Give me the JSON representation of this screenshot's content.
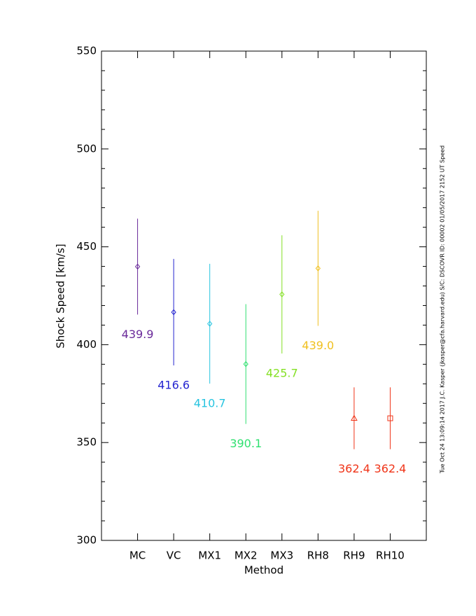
{
  "chart_data": {
    "type": "errorbar",
    "xlabel": "Method",
    "ylabel": "Shock Speed [km/s]",
    "annotation": "Tue Oct 24 13:09:14 2017   J.C. Kasper (jkasper@cfa.harvard.edu)   S/C: DSCOVR ID: 00002 01/05/2017  2152 UT Speed",
    "categories": [
      "MC",
      "VC",
      "MX1",
      "MX2",
      "MX3",
      "RH8",
      "RH9",
      "RH10"
    ],
    "values": [
      439.9,
      416.6,
      410.7,
      390.1,
      425.7,
      439.0,
      362.4,
      362.4
    ],
    "value_labels": [
      "439.9",
      "416.6",
      "410.7",
      "390.1",
      "425.7",
      "439.0",
      "362.4",
      "362.4"
    ],
    "errors": [
      24.5,
      27.2,
      30.6,
      30.6,
      30.2,
      29.4,
      15.8,
      15.8
    ],
    "colors": [
      "#6a2a9a",
      "#2424d0",
      "#28c4e0",
      "#30e070",
      "#84e024",
      "#f0c020",
      "#f03418",
      "#f03418"
    ],
    "markers": [
      "diamond",
      "diamond",
      "diamond",
      "diamond",
      "diamond",
      "diamond",
      "triangle",
      "square"
    ],
    "ylim": [
      300,
      550
    ],
    "yticks": [
      300,
      350,
      400,
      450,
      500,
      550
    ],
    "yminorticks": [
      310,
      320,
      330,
      340,
      360,
      370,
      380,
      390,
      410,
      420,
      430,
      440,
      460,
      470,
      480,
      490,
      510,
      520,
      530,
      540
    ]
  }
}
